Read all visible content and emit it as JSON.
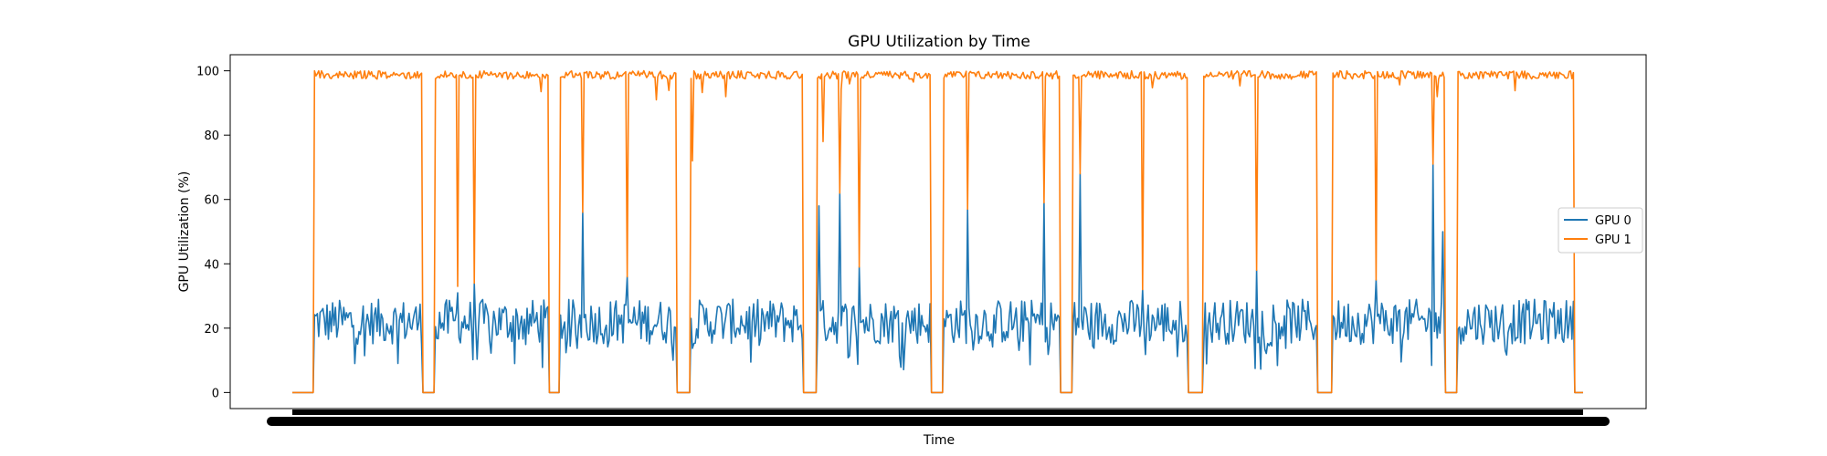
{
  "chart_data": {
    "type": "line",
    "title": "GPU Utilization by Time",
    "xlabel": "Time",
    "ylabel": "GPU Utilization (%)",
    "ylim": [
      -5,
      105
    ],
    "yticks": [
      0,
      20,
      40,
      60,
      80,
      100
    ],
    "grid": false,
    "legend_position": "center-right",
    "x_tick_labels": "dense-overlapping",
    "series": [
      {
        "name": "GPU 0",
        "color": "#1f77b4",
        "baseline": 22,
        "noise": 7,
        "idle_ranges": [
          [
            0,
            15
          ],
          [
            94,
            102
          ],
          [
            185,
            192
          ],
          [
            277,
            286
          ],
          [
            368,
            377
          ],
          [
            460,
            468
          ],
          [
            553,
            561
          ],
          [
            645,
            655
          ],
          [
            738,
            748
          ],
          [
            830,
            838
          ],
          [
            923,
            929
          ]
        ],
        "spikes": [
          [
            13,
            40
          ],
          [
            119,
            31
          ],
          [
            131,
            34
          ],
          [
            209,
            56
          ],
          [
            241,
            36
          ],
          [
            286,
            45
          ],
          [
            379,
            58
          ],
          [
            394,
            62
          ],
          [
            408,
            39
          ],
          [
            486,
            57
          ],
          [
            541,
            59
          ],
          [
            567,
            68
          ],
          [
            612,
            32
          ],
          [
            694,
            38
          ],
          [
            828,
            50
          ],
          [
            821,
            71
          ],
          [
            780,
            35
          ]
        ]
      },
      {
        "name": "GPU 1",
        "color": "#ff7f0e",
        "baseline": 99,
        "noise": 1.5,
        "idle_ranges": [
          [
            0,
            15
          ],
          [
            94,
            102
          ],
          [
            185,
            192
          ],
          [
            277,
            286
          ],
          [
            368,
            377
          ],
          [
            460,
            468
          ],
          [
            553,
            561
          ],
          [
            645,
            655
          ],
          [
            738,
            748
          ],
          [
            830,
            838
          ],
          [
            923,
            929
          ]
        ],
        "dips": [
          [
            13,
            29
          ],
          [
            98,
            86
          ],
          [
            119,
            33
          ],
          [
            131,
            34
          ],
          [
            209,
            56
          ],
          [
            241,
            36
          ],
          [
            262,
            91
          ],
          [
            281,
            64
          ],
          [
            288,
            72
          ],
          [
            312,
            92
          ],
          [
            382,
            78
          ],
          [
            394,
            62
          ],
          [
            408,
            39
          ],
          [
            486,
            57
          ],
          [
            541,
            59
          ],
          [
            567,
            68
          ],
          [
            612,
            32
          ],
          [
            694,
            38
          ],
          [
            780,
            35
          ],
          [
            821,
            71
          ],
          [
            824,
            92
          ]
        ]
      }
    ],
    "n_points": 930
  }
}
